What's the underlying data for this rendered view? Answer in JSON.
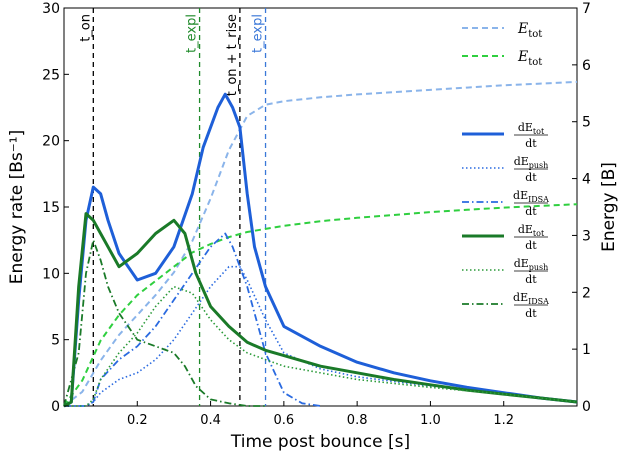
{
  "chart_data": {
    "type": "line",
    "xlabel": "Time post bounce [s]",
    "ylabel_left": "Energy rate [Bs⁻¹]",
    "ylabel_right": "Energy [B]",
    "xlim": [
      0.0,
      1.4
    ],
    "ylim_left": [
      0,
      30
    ],
    "ylim_right": [
      0,
      7
    ],
    "x_ticks": [
      0.2,
      0.4,
      0.6,
      0.8,
      1.0,
      1.2
    ],
    "y_ticks_left": [
      0,
      5,
      10,
      15,
      20,
      25,
      30
    ],
    "y_ticks_right": [
      0,
      1,
      2,
      3,
      4,
      5,
      6,
      7
    ],
    "grid": false,
    "legend_position": "right",
    "vlines": [
      {
        "x": 0.08,
        "label": "t_on",
        "color": "#000000"
      },
      {
        "x": 0.37,
        "label": "t_expl",
        "color": "#1f8a2a"
      },
      {
        "x": 0.48,
        "label": "t_on + t_rise",
        "color": "#000000"
      },
      {
        "x": 0.55,
        "label": "t_expl",
        "color": "#3b78d8"
      }
    ],
    "series": [
      {
        "name": "E_tot",
        "axis": "right",
        "color": "#8ab4ea",
        "style": "dashed",
        "x": [
          0.0,
          0.05,
          0.1,
          0.15,
          0.2,
          0.25,
          0.3,
          0.35,
          0.4,
          0.45,
          0.5,
          0.55,
          0.6,
          0.7,
          0.8,
          0.9,
          1.0,
          1.1,
          1.2,
          1.3,
          1.4
        ],
        "values": [
          0.0,
          0.25,
          0.8,
          1.25,
          1.6,
          1.95,
          2.35,
          2.9,
          3.65,
          4.5,
          5.1,
          5.3,
          5.36,
          5.43,
          5.48,
          5.52,
          5.56,
          5.6,
          5.64,
          5.67,
          5.7
        ]
      },
      {
        "name": "E_tot",
        "axis": "right",
        "color": "#2fcf3f",
        "style": "dashed",
        "x": [
          0.0,
          0.05,
          0.1,
          0.15,
          0.2,
          0.25,
          0.3,
          0.35,
          0.4,
          0.45,
          0.5,
          0.6,
          0.7,
          0.8,
          0.9,
          1.0,
          1.1,
          1.2,
          1.3,
          1.4
        ],
        "values": [
          0.0,
          0.45,
          1.15,
          1.6,
          1.95,
          2.2,
          2.45,
          2.7,
          2.85,
          2.97,
          3.06,
          3.17,
          3.25,
          3.31,
          3.36,
          3.41,
          3.45,
          3.49,
          3.52,
          3.55
        ]
      },
      {
        "name": "dE_tot/dt",
        "axis": "left",
        "color": "#1e5fd8",
        "style": "solid",
        "x": [
          0.0,
          0.02,
          0.04,
          0.06,
          0.08,
          0.1,
          0.12,
          0.15,
          0.2,
          0.25,
          0.3,
          0.35,
          0.38,
          0.42,
          0.44,
          0.46,
          0.48,
          0.5,
          0.52,
          0.55,
          0.6,
          0.7,
          0.8,
          0.9,
          1.0,
          1.1,
          1.2,
          1.3,
          1.4
        ],
        "values": [
          0.0,
          0.3,
          8.0,
          14.0,
          16.5,
          16.0,
          14.0,
          11.5,
          9.5,
          10.0,
          12.0,
          16.0,
          19.5,
          22.5,
          23.5,
          22.5,
          21.0,
          16.0,
          12.0,
          9.0,
          6.0,
          4.5,
          3.3,
          2.5,
          1.9,
          1.4,
          1.0,
          0.6,
          0.3
        ]
      },
      {
        "name": "dE_push/dt",
        "axis": "left",
        "color": "#2a6ae0",
        "style": "dotted",
        "x": [
          0.0,
          0.06,
          0.08,
          0.1,
          0.15,
          0.2,
          0.25,
          0.3,
          0.35,
          0.4,
          0.45,
          0.48,
          0.5,
          0.55,
          0.6,
          0.7,
          0.8,
          1.0,
          1.2,
          1.4
        ],
        "values": [
          0.0,
          0.0,
          0.3,
          1.0,
          2.0,
          2.5,
          3.5,
          5.0,
          7.0,
          9.0,
          10.5,
          10.5,
          9.5,
          6.5,
          4.0,
          2.8,
          2.2,
          1.5,
          1.0,
          0.3
        ]
      },
      {
        "name": "dE_IDSA/dt",
        "axis": "left",
        "color": "#2a6ae0",
        "style": "dashdot",
        "x": [
          0.0,
          0.06,
          0.08,
          0.1,
          0.15,
          0.2,
          0.25,
          0.3,
          0.35,
          0.4,
          0.44,
          0.46,
          0.5,
          0.55,
          0.6,
          0.65,
          0.7
        ],
        "values": [
          0.0,
          0.0,
          0.3,
          2.0,
          3.5,
          4.5,
          6.0,
          8.0,
          10.0,
          12.0,
          13.0,
          12.0,
          9.0,
          4.0,
          1.0,
          0.2,
          0.0
        ]
      },
      {
        "name": "dE_tot/dt",
        "axis": "left",
        "color": "#1a7a28",
        "style": "solid",
        "x": [
          0.0,
          0.02,
          0.04,
          0.06,
          0.08,
          0.1,
          0.12,
          0.15,
          0.2,
          0.25,
          0.3,
          0.33,
          0.36,
          0.4,
          0.45,
          0.5,
          0.55,
          0.6,
          0.7,
          0.8,
          0.9,
          1.0,
          1.1,
          1.2,
          1.3,
          1.4
        ],
        "values": [
          0.0,
          0.3,
          9.0,
          14.5,
          14.0,
          13.0,
          12.0,
          10.5,
          11.5,
          13.0,
          14.0,
          13.0,
          10.0,
          7.5,
          6.0,
          4.8,
          4.2,
          3.8,
          3.0,
          2.5,
          2.0,
          1.6,
          1.2,
          0.9,
          0.6,
          0.3
        ]
      },
      {
        "name": "dE_push/dt",
        "axis": "left",
        "color": "#2a9a38",
        "style": "dotted",
        "x": [
          0.0,
          0.06,
          0.08,
          0.1,
          0.15,
          0.2,
          0.25,
          0.3,
          0.35,
          0.4,
          0.45,
          0.5,
          0.6,
          0.8,
          1.0,
          1.2,
          1.4
        ],
        "values": [
          0.0,
          0.0,
          0.5,
          2.0,
          4.0,
          5.5,
          7.5,
          9.0,
          8.5,
          6.5,
          5.0,
          4.0,
          3.0,
          2.0,
          1.4,
          0.9,
          0.3
        ]
      },
      {
        "name": "dE_IDSA/dt",
        "axis": "left",
        "color": "#1a7a28",
        "style": "dashdot",
        "x": [
          0.0,
          0.04,
          0.06,
          0.08,
          0.1,
          0.12,
          0.15,
          0.2,
          0.25,
          0.3,
          0.33,
          0.36,
          0.4,
          0.45,
          0.5,
          0.55
        ],
        "values": [
          0.0,
          4.0,
          10.0,
          12.5,
          11.0,
          9.0,
          7.0,
          5.0,
          4.5,
          4.0,
          3.0,
          1.5,
          0.5,
          0.2,
          0.0,
          0.0
        ]
      }
    ],
    "legend": [
      {
        "main": "E",
        "sub": "tot",
        "frac": false,
        "color": "#8ab4ea",
        "style": "dashed"
      },
      {
        "main": "E",
        "sub": "tot",
        "frac": false,
        "color": "#2fcf3f",
        "style": "dashed"
      },
      {
        "main": "dE",
        "sub": "tot",
        "frac": true,
        "den": "dt",
        "color": "#1e5fd8",
        "style": "solid"
      },
      {
        "main": "dE",
        "sub": "push",
        "frac": true,
        "den": "dt",
        "color": "#2a6ae0",
        "style": "dotted"
      },
      {
        "main": "dE",
        "sub": "IDSA",
        "frac": true,
        "den": "dt",
        "color": "#2a6ae0",
        "style": "dashdot"
      },
      {
        "main": "dE",
        "sub": "tot",
        "frac": true,
        "den": "dt",
        "color": "#1a7a28",
        "style": "solid"
      },
      {
        "main": "dE",
        "sub": "push",
        "frac": true,
        "den": "dt",
        "color": "#2a9a38",
        "style": "dotted"
      },
      {
        "main": "dE",
        "sub": "IDSA",
        "frac": true,
        "den": "dt",
        "color": "#1a7a28",
        "style": "dashdot"
      }
    ]
  }
}
